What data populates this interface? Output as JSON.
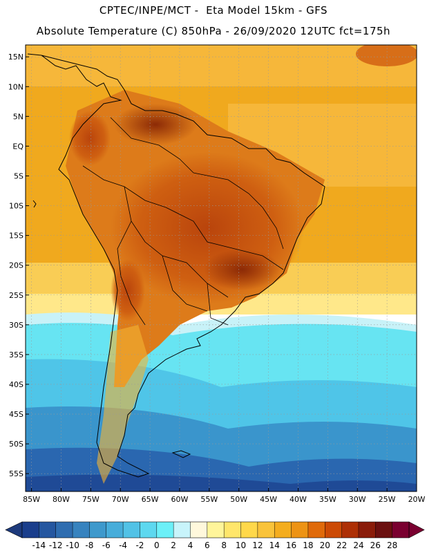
{
  "header": {
    "line1": "CPTEC/INPE/MCT -  Eta Model 15km - GFS",
    "line2": "Absolute Temperature (C) 850hPa - 26/09/2020 12UTC fct=175h"
  },
  "map": {
    "lon_range": [
      -86,
      -20
    ],
    "lat_range": [
      -58,
      17
    ],
    "lat_ticks": [
      {
        "value": 15,
        "label": "15N"
      },
      {
        "value": 10,
        "label": "10N"
      },
      {
        "value": 5,
        "label": "5N"
      },
      {
        "value": 0,
        "label": "EQ"
      },
      {
        "value": -5,
        "label": "5S"
      },
      {
        "value": -10,
        "label": "10S"
      },
      {
        "value": -15,
        "label": "15S"
      },
      {
        "value": -20,
        "label": "20S"
      },
      {
        "value": -25,
        "label": "25S"
      },
      {
        "value": -30,
        "label": "30S"
      },
      {
        "value": -35,
        "label": "35S"
      },
      {
        "value": -40,
        "label": "40S"
      },
      {
        "value": -45,
        "label": "45S"
      },
      {
        "value": -50,
        "label": "50S"
      },
      {
        "value": -55,
        "label": "55S"
      }
    ],
    "lon_ticks": [
      {
        "value": -85,
        "label": "85W"
      },
      {
        "value": -80,
        "label": "80W"
      },
      {
        "value": -75,
        "label": "75W"
      },
      {
        "value": -70,
        "label": "70W"
      },
      {
        "value": -65,
        "label": "65W"
      },
      {
        "value": -60,
        "label": "60W"
      },
      {
        "value": -55,
        "label": "55W"
      },
      {
        "value": -50,
        "label": "50W"
      },
      {
        "value": -45,
        "label": "45W"
      },
      {
        "value": -40,
        "label": "40W"
      },
      {
        "value": -35,
        "label": "35W"
      },
      {
        "value": -30,
        "label": "30W"
      },
      {
        "value": -25,
        "label": "25W"
      },
      {
        "value": -20,
        "label": "20W"
      }
    ]
  },
  "colorbar": {
    "labels": [
      "-14",
      "-12",
      "-10",
      "-8",
      "-6",
      "-4",
      "-2",
      "0",
      "2",
      "4",
      "6",
      "8",
      "10",
      "12",
      "14",
      "16",
      "18",
      "20",
      "22",
      "24",
      "26",
      "28"
    ],
    "colors": [
      "#1a3e8c",
      "#2557a0",
      "#2f6db0",
      "#3783bf",
      "#3e99cc",
      "#47adda",
      "#52c2e6",
      "#5dd8ef",
      "#6cf0f8",
      "#c8f4fb",
      "#fff8dc",
      "#fff59a",
      "#ffe66b",
      "#ffd84a",
      "#f9c33a",
      "#f4ad1e",
      "#ed9314",
      "#e06a0a",
      "#cc4a05",
      "#ad2f05",
      "#8a1c0a",
      "#6b1010",
      "#7a0030"
    ],
    "under_color": "#1d3a7c",
    "over_color": "#7a0030"
  }
}
